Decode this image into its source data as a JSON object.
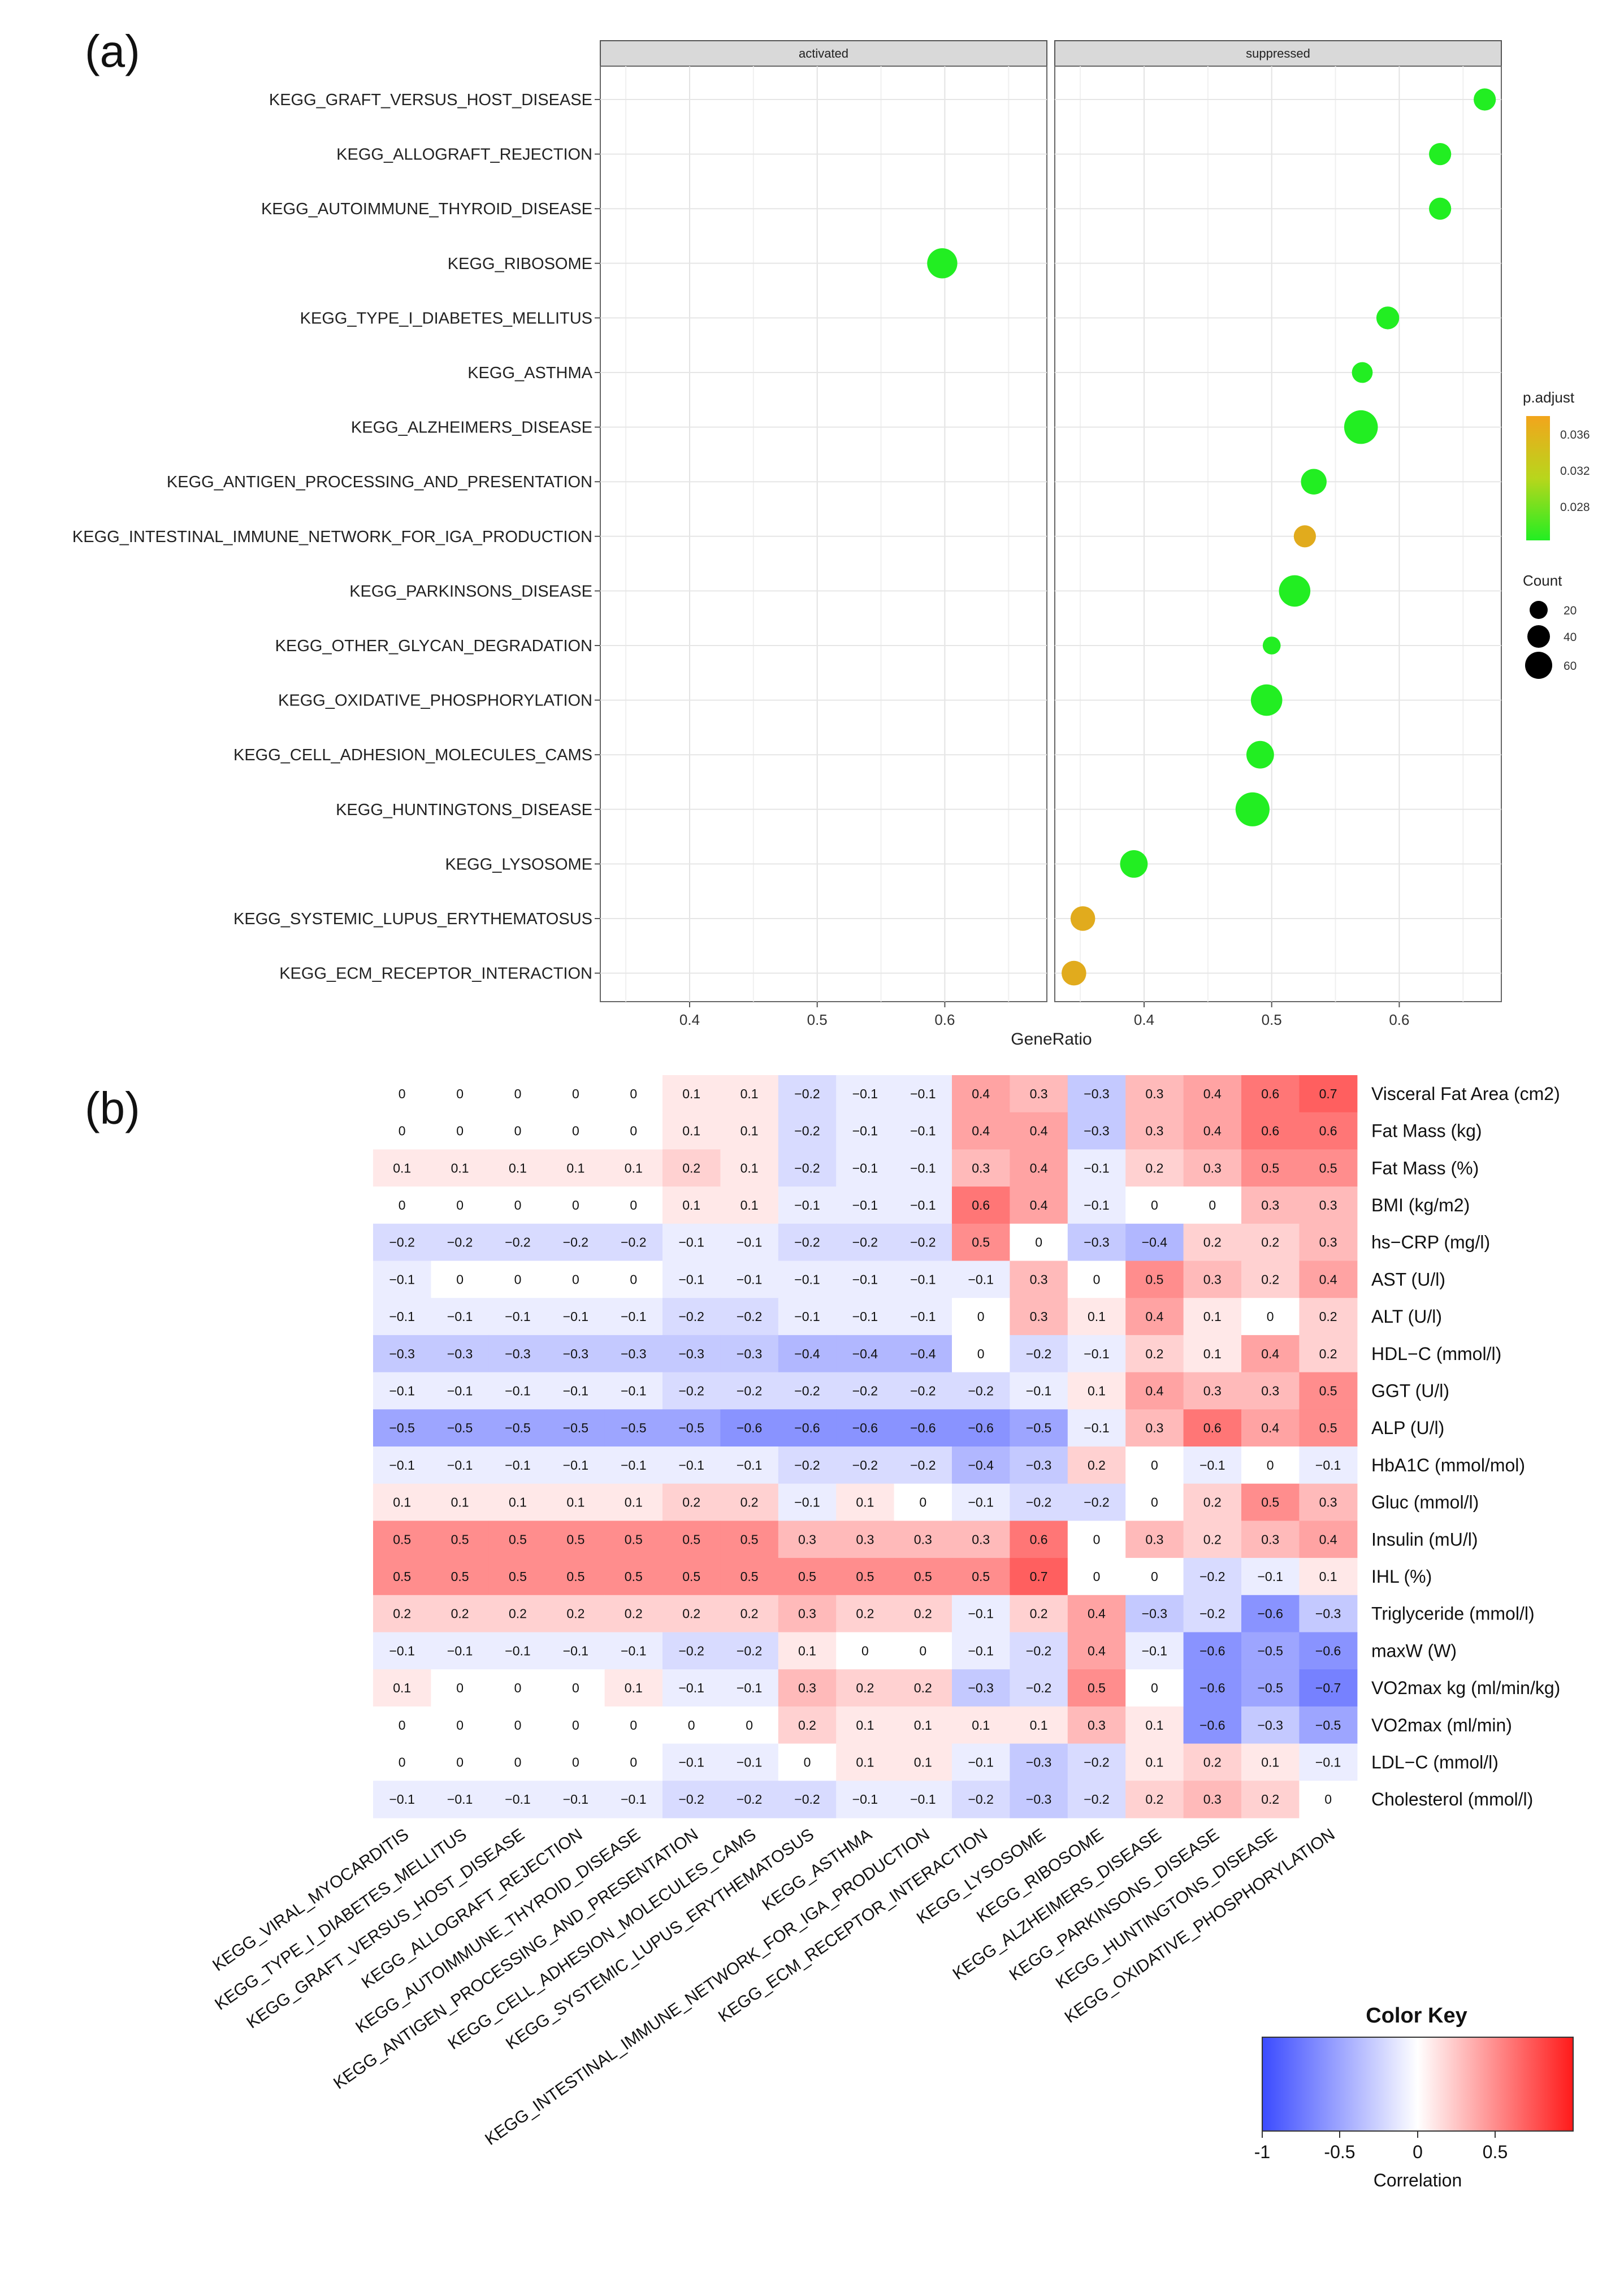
{
  "panel_a": {
    "label": "(a)",
    "facets": [
      "activated",
      "suppressed"
    ],
    "xlabel": "GeneRatio",
    "legend": {
      "color_title": "p.adjust",
      "color_ticks": [
        "0.036",
        "0.032",
        "0.028"
      ],
      "size_title": "Count",
      "size_ticks": [
        "20",
        "40",
        "60"
      ]
    }
  },
  "panel_b": {
    "label": "(b)",
    "color_key": {
      "title": "Color Key",
      "ticks": [
        "-1",
        "-0.5",
        "0",
        "0.5"
      ],
      "xlabel": "Correlation",
      "low_color": "#3b4bff",
      "mid_color": "#ffffff",
      "high_color": "#ff1a1a"
    }
  },
  "chart_data": [
    {
      "type": "scatter",
      "title": "(a)",
      "xlabel": "GeneRatio",
      "ylabel": "",
      "facets": [
        {
          "name": "activated",
          "xlim": [
            0.33,
            0.68
          ],
          "xticks": [
            "0.4",
            "0.5",
            "0.6"
          ]
        },
        {
          "name": "suppressed",
          "xlim": [
            0.33,
            0.68
          ],
          "xticks": [
            "0.4",
            "0.5",
            "0.6"
          ]
        }
      ],
      "categories": [
        "KEGG_GRAFT_VERSUS_HOST_DISEASE",
        "KEGG_ALLOGRAFT_REJECTION",
        "KEGG_AUTOIMMUNE_THYROID_DISEASE",
        "KEGG_RIBOSOME",
        "KEGG_TYPE_I_DIABETES_MELLITUS",
        "KEGG_ASTHMA",
        "KEGG_ALZHEIMERS_DISEASE",
        "KEGG_ANTIGEN_PROCESSING_AND_PRESENTATION",
        "KEGG_INTESTINAL_IMMUNE_NETWORK_FOR_IGA_PRODUCTION",
        "KEGG_PARKINSONS_DISEASE",
        "KEGG_OTHER_GLYCAN_DEGRADATION",
        "KEGG_OXIDATIVE_PHOSPHORYLATION",
        "KEGG_CELL_ADHESION_MOLECULES_CAMS",
        "KEGG_HUNTINGTONS_DISEASE",
        "KEGG_LYSOSOME",
        "KEGG_SYSTEMIC_LUPUS_ERYTHEMATOSUS",
        "KEGG_ECM_RECEPTOR_INTERACTION"
      ],
      "points": [
        {
          "term": "KEGG_GRAFT_VERSUS_HOST_DISEASE",
          "facet": "suppressed",
          "x": 0.667,
          "count": 20,
          "p_adjust": 0.025
        },
        {
          "term": "KEGG_ALLOGRAFT_REJECTION",
          "facet": "suppressed",
          "x": 0.632,
          "count": 20,
          "p_adjust": 0.025
        },
        {
          "term": "KEGG_AUTOIMMUNE_THYROID_DISEASE",
          "facet": "suppressed",
          "x": 0.632,
          "count": 20,
          "p_adjust": 0.025
        },
        {
          "term": "KEGG_RIBOSOME",
          "facet": "activated",
          "x": 0.598,
          "count": 52,
          "p_adjust": 0.025
        },
        {
          "term": "KEGG_TYPE_I_DIABETES_MELLITUS",
          "facet": "suppressed",
          "x": 0.591,
          "count": 22,
          "p_adjust": 0.025
        },
        {
          "term": "KEGG_ASTHMA",
          "facet": "suppressed",
          "x": 0.571,
          "count": 16,
          "p_adjust": 0.025
        },
        {
          "term": "KEGG_ALZHEIMERS_DISEASE",
          "facet": "suppressed",
          "x": 0.57,
          "count": 70,
          "p_adjust": 0.025
        },
        {
          "term": "KEGG_ANTIGEN_PROCESSING_AND_PRESENTATION",
          "facet": "suppressed",
          "x": 0.533,
          "count": 32,
          "p_adjust": 0.025
        },
        {
          "term": "KEGG_INTESTINAL_IMMUNE_NETWORK_FOR_IGA_PRODUCTION",
          "facet": "suppressed",
          "x": 0.526,
          "count": 20,
          "p_adjust": 0.036
        },
        {
          "term": "KEGG_PARKINSONS_DISEASE",
          "facet": "suppressed",
          "x": 0.518,
          "count": 58,
          "p_adjust": 0.025
        },
        {
          "term": "KEGG_OTHER_GLYCAN_DEGRADATION",
          "facet": "suppressed",
          "x": 0.5,
          "count": 9,
          "p_adjust": 0.025
        },
        {
          "term": "KEGG_OXIDATIVE_PHOSPHORYLATION",
          "facet": "suppressed",
          "x": 0.496,
          "count": 58,
          "p_adjust": 0.025
        },
        {
          "term": "KEGG_CELL_ADHESION_MOLECULES_CAMS",
          "facet": "suppressed",
          "x": 0.491,
          "count": 40,
          "p_adjust": 0.025
        },
        {
          "term": "KEGG_HUNTINGTONS_DISEASE",
          "facet": "suppressed",
          "x": 0.485,
          "count": 72,
          "p_adjust": 0.025
        },
        {
          "term": "KEGG_LYSOSOME",
          "facet": "suppressed",
          "x": 0.392,
          "count": 40,
          "p_adjust": 0.025
        },
        {
          "term": "KEGG_SYSTEMIC_LUPUS_ERYTHEMATOSUS",
          "facet": "suppressed",
          "x": 0.352,
          "count": 28,
          "p_adjust": 0.036
        },
        {
          "term": "KEGG_ECM_RECEPTOR_INTERACTION",
          "facet": "suppressed",
          "x": 0.345,
          "count": 28,
          "p_adjust": 0.036
        }
      ],
      "color_scale": {
        "name": "p.adjust",
        "range": [
          0.025,
          0.037
        ],
        "low_color": "#22ee22",
        "high_color": "#f2a51c"
      },
      "size_scale": {
        "name": "Count",
        "ticks": [
          20,
          40,
          60
        ]
      }
    },
    {
      "type": "heatmap",
      "title": "(b)",
      "xlabel": "",
      "ylabel": "",
      "value_label": "Correlation",
      "zlim": [
        -1,
        1
      ],
      "columns": [
        "KEGG_VIRAL_MYOCARDITIS",
        "KEGG_TYPE_I_DIABETES_MELLITUS",
        "KEGG_GRAFT_VERSUS_HOST_DISEASE",
        "KEGG_ALLOGRAFT_REJECTION",
        "KEGG_AUTOIMMUNE_THYROID_DISEASE",
        "KEGG_ANTIGEN_PROCESSING_AND_PRESENTATION",
        "KEGG_CELL_ADHESION_MOLECULES_CAMS",
        "KEGG_SYSTEMIC_LUPUS_ERYTHEMATOSUS",
        "KEGG_ASTHMA",
        "KEGG_INTESTINAL_IMMUNE_NETWORK_FOR_IGA_PRODUCTION",
        "KEGG_ECM_RECEPTOR_INTERACTION",
        "KEGG_LYSOSOME",
        "KEGG_RIBOSOME",
        "KEGG_ALZHEIMERS_DISEASE",
        "KEGG_PARKINSONS_DISEASE",
        "KEGG_HUNTINGTONS_DISEASE",
        "KEGG_OXIDATIVE_PHOSPHORYLATION"
      ],
      "rows": [
        "Visceral Fat Area (cm2)",
        "Fat Mass (kg)",
        "Fat Mass (%)",
        "BMI (kg/m2)",
        "hs−CRP (mg/l)",
        "AST (U/l)",
        "ALT (U/l)",
        "HDL−C (mmol/l)",
        "GGT (U/l)",
        "ALP (U/l)",
        "HbA1C (mmol/mol)",
        "Gluc (mmol/l)",
        "Insulin (mU/l)",
        "IHL (%)",
        "Triglyceride (mmol/l)",
        "maxW (W)",
        "VO2max kg (ml/min/kg)",
        "VO2max (ml/min)",
        "LDL−C (mmol/l)",
        "Cholesterol (mmol/l)"
      ],
      "values": [
        [
          "0",
          "0",
          "0",
          "0",
          "0",
          "0.1",
          "0.1",
          "−0.2",
          "−0.1",
          "−0.1",
          "0.4",
          "0.3",
          "−0.3",
          "0.3",
          "0.4",
          "0.6",
          "0.7"
        ],
        [
          "0",
          "0",
          "0",
          "0",
          "0",
          "0.1",
          "0.1",
          "−0.2",
          "−0.1",
          "−0.1",
          "0.4",
          "0.4",
          "−0.3",
          "0.3",
          "0.4",
          "0.6",
          "0.6"
        ],
        [
          "0.1",
          "0.1",
          "0.1",
          "0.1",
          "0.1",
          "0.2",
          "0.1",
          "−0.2",
          "−0.1",
          "−0.1",
          "0.3",
          "0.4",
          "−0.1",
          "0.2",
          "0.3",
          "0.5",
          "0.5"
        ],
        [
          "0",
          "0",
          "0",
          "0",
          "0",
          "0.1",
          "0.1",
          "−0.1",
          "−0.1",
          "−0.1",
          "0.6",
          "0.4",
          "−0.1",
          "0",
          "0",
          "0.3",
          "0.3"
        ],
        [
          "−0.2",
          "−0.2",
          "−0.2",
          "−0.2",
          "−0.2",
          "−0.1",
          "−0.1",
          "−0.2",
          "−0.2",
          "−0.2",
          "0.5",
          "0",
          "−0.3",
          "−0.4",
          "0.2",
          "0.2",
          "0.3"
        ],
        [
          "−0.1",
          "0",
          "0",
          "0",
          "0",
          "−0.1",
          "−0.1",
          "−0.1",
          "−0.1",
          "−0.1",
          "−0.1",
          "0.3",
          "0",
          "0.5",
          "0.3",
          "0.2",
          "0.4"
        ],
        [
          "−0.1",
          "−0.1",
          "−0.1",
          "−0.1",
          "−0.1",
          "−0.2",
          "−0.2",
          "−0.1",
          "−0.1",
          "−0.1",
          "0",
          "0.3",
          "0.1",
          "0.4",
          "0.1",
          "0",
          "0.2"
        ],
        [
          "−0.3",
          "−0.3",
          "−0.3",
          "−0.3",
          "−0.3",
          "−0.3",
          "−0.3",
          "−0.4",
          "−0.4",
          "−0.4",
          "0",
          "−0.2",
          "−0.1",
          "0.2",
          "0.1",
          "0.4",
          "0.2"
        ],
        [
          "−0.1",
          "−0.1",
          "−0.1",
          "−0.1",
          "−0.1",
          "−0.2",
          "−0.2",
          "−0.2",
          "−0.2",
          "−0.2",
          "−0.2",
          "−0.1",
          "0.1",
          "0.4",
          "0.3",
          "0.3",
          "0.5"
        ],
        [
          "−0.5",
          "−0.5",
          "−0.5",
          "−0.5",
          "−0.5",
          "−0.5",
          "−0.6",
          "−0.6",
          "−0.6",
          "−0.6",
          "−0.6",
          "−0.5",
          "−0.1",
          "0.3",
          "0.6",
          "0.4",
          "0.5"
        ],
        [
          "−0.1",
          "−0.1",
          "−0.1",
          "−0.1",
          "−0.1",
          "−0.1",
          "−0.1",
          "−0.2",
          "−0.2",
          "−0.2",
          "−0.4",
          "−0.3",
          "0.2",
          "0",
          "−0.1",
          "0",
          "−0.1"
        ],
        [
          "0.1",
          "0.1",
          "0.1",
          "0.1",
          "0.1",
          "0.2",
          "0.2",
          "−0.1",
          "0.1",
          "0",
          "−0.1",
          "−0.2",
          "−0.2",
          "0",
          "0.2",
          "0.5",
          "0.3"
        ],
        [
          "0.5",
          "0.5",
          "0.5",
          "0.5",
          "0.5",
          "0.5",
          "0.5",
          "0.3",
          "0.3",
          "0.3",
          "0.3",
          "0.6",
          "0",
          "0.3",
          "0.2",
          "0.3",
          "0.4"
        ],
        [
          "0.5",
          "0.5",
          "0.5",
          "0.5",
          "0.5",
          "0.5",
          "0.5",
          "0.5",
          "0.5",
          "0.5",
          "0.5",
          "0.7",
          "0",
          "0",
          "−0.2",
          "−0.1",
          "0.1"
        ],
        [
          "0.2",
          "0.2",
          "0.2",
          "0.2",
          "0.2",
          "0.2",
          "0.2",
          "0.3",
          "0.2",
          "0.2",
          "−0.1",
          "0.2",
          "0.4",
          "−0.3",
          "−0.2",
          "−0.6",
          "−0.3"
        ],
        [
          "−0.1",
          "−0.1",
          "−0.1",
          "−0.1",
          "−0.1",
          "−0.2",
          "−0.2",
          "0.1",
          "0",
          "0",
          "−0.1",
          "−0.2",
          "0.4",
          "−0.1",
          "−0.6",
          "−0.5",
          "−0.6"
        ],
        [
          "0.1",
          "0",
          "0",
          "0",
          "0.1",
          "−0.1",
          "−0.1",
          "0.3",
          "0.2",
          "0.2",
          "−0.3",
          "−0.2",
          "0.5",
          "0",
          "−0.6",
          "−0.5",
          "−0.7"
        ],
        [
          "0",
          "0",
          "0",
          "0",
          "0",
          "0",
          "0",
          "0.2",
          "0.1",
          "0.1",
          "0.1",
          "0.1",
          "0.3",
          "0.1",
          "−0.6",
          "−0.3",
          "−0.5"
        ],
        [
          "0",
          "0",
          "0",
          "0",
          "0",
          "−0.1",
          "−0.1",
          "0",
          "0.1",
          "0.1",
          "−0.1",
          "−0.3",
          "−0.2",
          "0.1",
          "0.2",
          "0.1",
          "−0.1"
        ],
        [
          "−0.1",
          "−0.1",
          "−0.1",
          "−0.1",
          "−0.1",
          "−0.2",
          "−0.2",
          "−0.2",
          "−0.1",
          "−0.1",
          "−0.2",
          "−0.3",
          "−0.2",
          "0.2",
          "0.3",
          "0.2",
          "0"
        ]
      ]
    }
  ]
}
